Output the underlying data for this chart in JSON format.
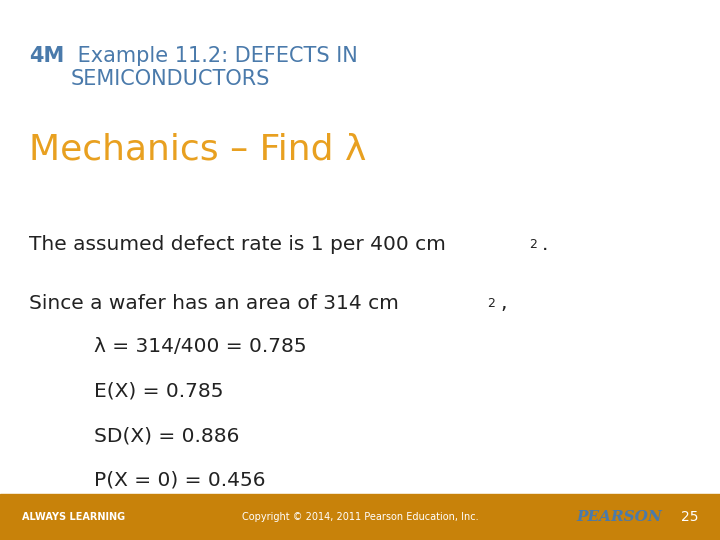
{
  "title_4M": "4M",
  "title_rest": " Example 11.2: DEFECTS IN\nSEMICONDUCTORS",
  "subtitle": "Mechanics – Find λ",
  "body_line1": "The assumed defect rate is 1 per 400 cm",
  "body_line1_sup": "2",
  "body_line1_end": ".",
  "body_line2": "Since a wafer has an area of 314 cm",
  "body_line2_sup": "2",
  "body_line2_end": ",",
  "indent_lines": [
    "λ = 314/400 = 0.785",
    "E(X) = 0.785",
    "SD(X) = 0.886",
    "P(X = 0) = 0.456"
  ],
  "footer_left": "ALWAYS LEARNING",
  "footer_center": "Copyright © 2014, 2011 Pearson Education, Inc.",
  "footer_right": "PEARSON",
  "footer_page": "25",
  "color_blue": "#4a7aab",
  "color_orange": "#e8a020",
  "color_dark": "#222222",
  "color_footer_bg": "#c8820a",
  "color_white": "#ffffff",
  "bg_color": "#ffffff"
}
